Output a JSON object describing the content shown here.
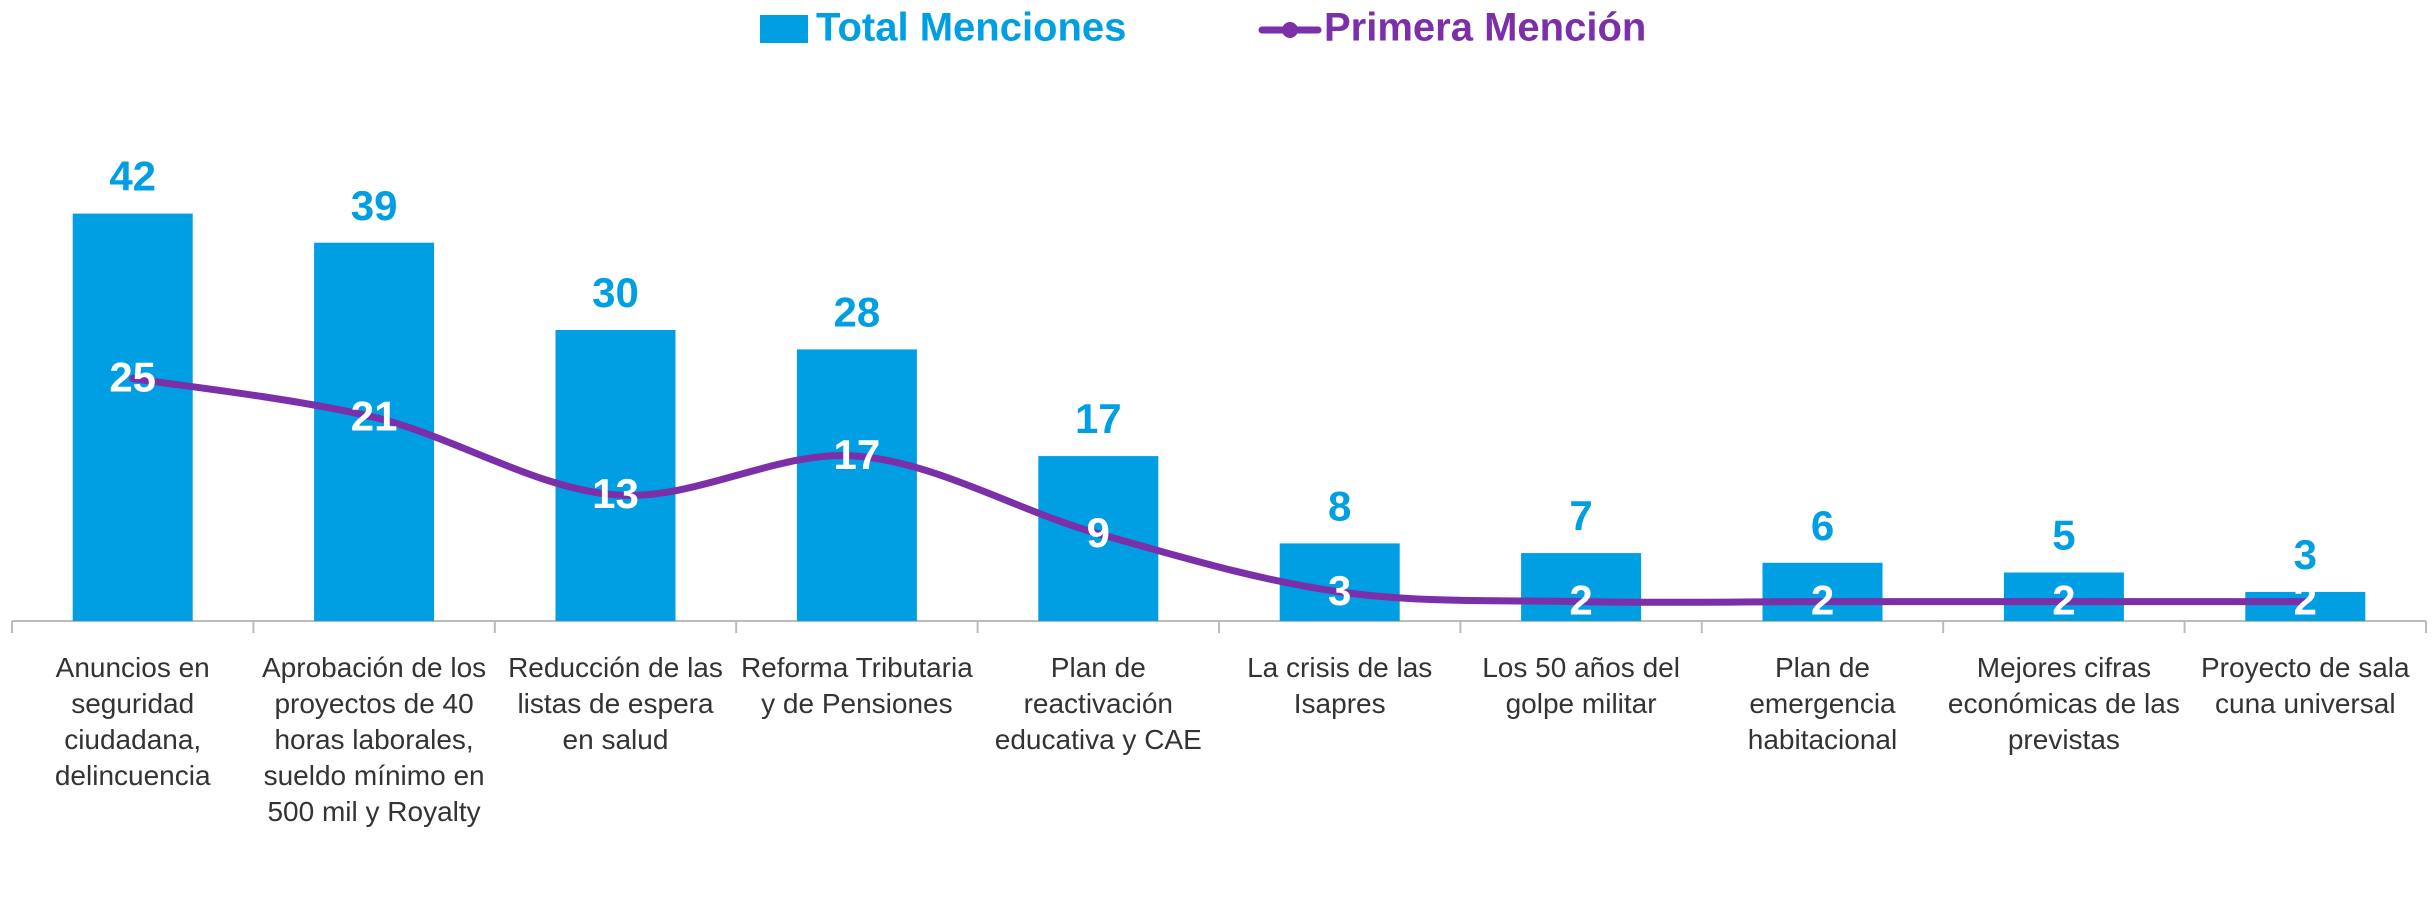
{
  "chart_data": {
    "type": "bar_line",
    "categories": [
      "Anuncios en seguridad ciudadana, delincuencia",
      "Aprobación de los proyectos de 40 horas laborales, sueldo mínimo en 500 mil y Royalty",
      "Reducción de las listas de espera en salud",
      "Reforma Tributaria y de Pensiones",
      "Plan de reactivación educativa y CAE",
      "La crisis de las Isapres",
      "Los 50 años del golpe militar",
      "Plan de emergencia habitacional",
      "Mejores cifras económicas de las previstas",
      "Proyecto de sala cuna universal"
    ],
    "series": [
      {
        "name": "Total Menciones",
        "type": "bar",
        "color": "#009fe3",
        "values": [
          42,
          39,
          30,
          28,
          17,
          8,
          7,
          6,
          5,
          3
        ]
      },
      {
        "name": "Primera Mención",
        "type": "line",
        "color": "#7b2fa8",
        "values": [
          25,
          21,
          13,
          17,
          9,
          3,
          2,
          2,
          2,
          2
        ]
      }
    ],
    "ylim": [
      0,
      50
    ],
    "legend": "top"
  }
}
